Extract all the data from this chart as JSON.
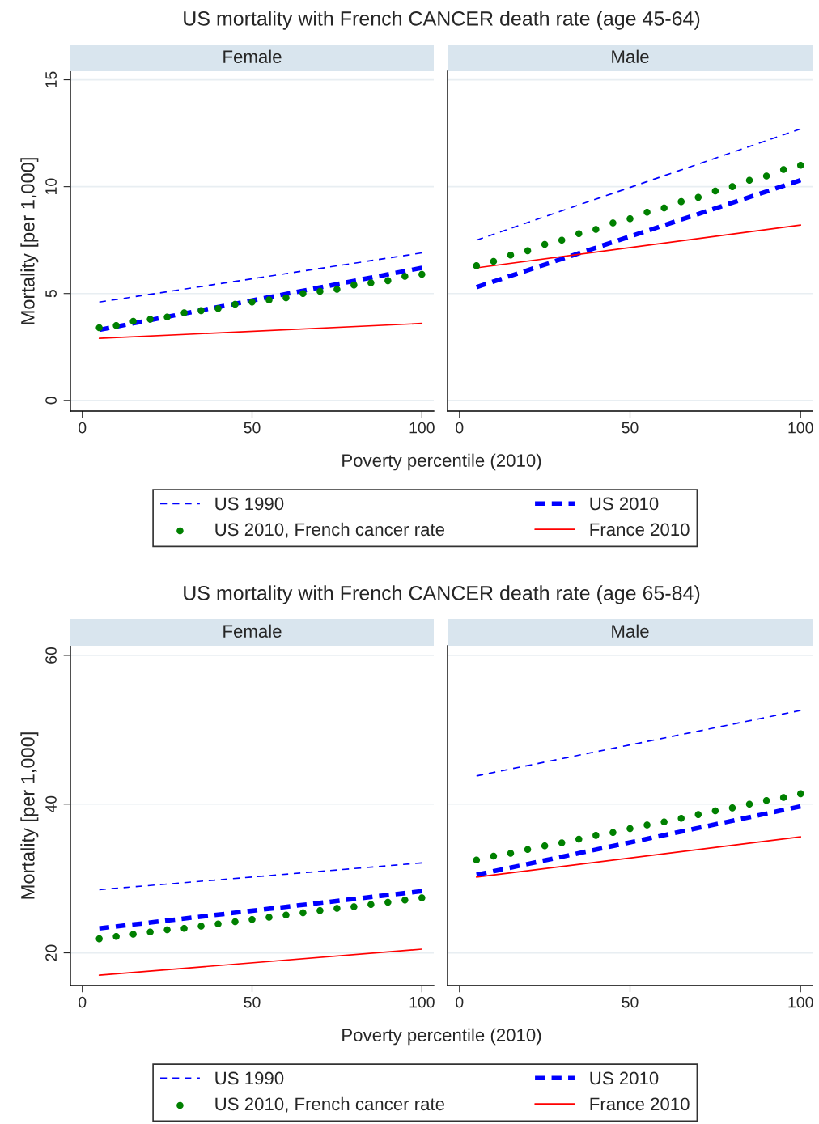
{
  "chart_data": [
    {
      "type": "line",
      "title": "US mortality with French CANCER death rate (age 45-64)",
      "subtitle": "Female",
      "xlabel": "Poverty percentile (2010)",
      "ylabel": "Mortality [per 1,000]",
      "xlim": [
        -3.5,
        103.5
      ],
      "ylim": [
        -0.5,
        15.4
      ],
      "xticks": [
        0,
        50,
        100
      ],
      "yticks": [
        0,
        5,
        10,
        15
      ],
      "grid": "y",
      "legend": "bottom",
      "series": [
        {
          "name": "US 1990",
          "line_style": "dashed",
          "color": "#0000ff",
          "x": [
            5,
            100
          ],
          "values": [
            4.6,
            6.9
          ]
        },
        {
          "name": "US 2010",
          "line_style": "dashed",
          "color": "#0000ff",
          "x": [
            5,
            100
          ],
          "values": [
            3.3,
            6.2
          ]
        },
        {
          "name": "US 2010, French cancer rate",
          "type": "scatter",
          "marker": "circle",
          "color": "#008000",
          "x": [
            5,
            10,
            15,
            20,
            25,
            30,
            35,
            40,
            45,
            50,
            55,
            60,
            65,
            70,
            75,
            80,
            85,
            90,
            95,
            100
          ],
          "values": [
            3.4,
            3.5,
            3.7,
            3.8,
            3.9,
            4.1,
            4.2,
            4.3,
            4.5,
            4.6,
            4.7,
            4.8,
            5.0,
            5.1,
            5.2,
            5.4,
            5.5,
            5.6,
            5.8,
            5.9
          ]
        },
        {
          "name": "France 2010",
          "line_style": "solid",
          "color": "#ff0000",
          "x": [
            5,
            100
          ],
          "values": [
            2.9,
            3.6
          ]
        }
      ]
    },
    {
      "type": "line",
      "subtitle": "Male",
      "xlim": [
        -3.5,
        103.5
      ],
      "ylim": [
        -0.5,
        15.4
      ],
      "xticks": [
        0,
        50,
        100
      ],
      "yticks": [
        0,
        5,
        10,
        15
      ],
      "grid": "y",
      "tick_labels": "x",
      "series": [
        {
          "line_style": "dashed",
          "color": "#0000ff",
          "x": [
            5,
            100
          ],
          "values": [
            7.5,
            12.7
          ]
        },
        {
          "line_style": "dashed",
          "color": "#0000ff",
          "x": [
            5,
            100
          ],
          "values": [
            5.3,
            10.3
          ]
        },
        {
          "type": "scatter",
          "marker": "circle",
          "color": "#008000",
          "x": [
            5,
            10,
            15,
            20,
            25,
            30,
            35,
            40,
            45,
            50,
            55,
            60,
            65,
            70,
            75,
            80,
            85,
            90,
            95,
            100
          ],
          "values": [
            6.3,
            6.5,
            6.8,
            7.0,
            7.3,
            7.5,
            7.8,
            8.0,
            8.3,
            8.5,
            8.8,
            9.0,
            9.3,
            9.5,
            9.8,
            10.0,
            10.3,
            10.5,
            10.8,
            11.0
          ]
        },
        {
          "line_style": "solid",
          "color": "#ff0000",
          "x": [
            5,
            100
          ],
          "values": [
            6.2,
            8.2
          ]
        }
      ]
    },
    {
      "type": "line",
      "title": "US mortality with French CANCER death rate (age 65-84)",
      "subtitle": "Female",
      "xlabel": "Poverty percentile (2010)",
      "ylabel": "Mortality [per 1,000]",
      "xlim": [
        -3.5,
        103.5
      ],
      "ylim": [
        15.6,
        61.3
      ],
      "xticks": [
        0,
        50,
        100
      ],
      "yticks": [
        20,
        40,
        60
      ],
      "grid": "y",
      "legend": "bottom",
      "series": [
        {
          "name": "US 1990",
          "line_style": "dashed",
          "color": "#0000ff",
          "x": [
            5,
            100
          ],
          "values": [
            28.5,
            32.1
          ]
        },
        {
          "name": "US 2010",
          "line_style": "dashed",
          "color": "#0000ff",
          "x": [
            5,
            100
          ],
          "values": [
            23.3,
            28.3
          ]
        },
        {
          "name": "US 2010, French cancer rate",
          "type": "scatter",
          "marker": "circle",
          "color": "#008000",
          "x": [
            5,
            10,
            15,
            20,
            25,
            30,
            35,
            40,
            45,
            50,
            55,
            60,
            65,
            70,
            75,
            80,
            85,
            90,
            95,
            100
          ],
          "values": [
            21.9,
            22.2,
            22.5,
            22.8,
            23.1,
            23.3,
            23.6,
            23.9,
            24.2,
            24.5,
            24.8,
            25.1,
            25.4,
            25.7,
            26.0,
            26.2,
            26.5,
            26.8,
            27.1,
            27.4
          ]
        },
        {
          "name": "France 2010",
          "line_style": "solid",
          "color": "#ff0000",
          "x": [
            5,
            100
          ],
          "values": [
            17.0,
            20.5
          ]
        }
      ]
    },
    {
      "type": "line",
      "subtitle": "Male",
      "xlim": [
        -3.5,
        103.5
      ],
      "ylim": [
        15.6,
        61.3
      ],
      "xticks": [
        0,
        50,
        100
      ],
      "yticks": [
        20,
        40,
        60
      ],
      "grid": "y",
      "tick_labels": "x",
      "series": [
        {
          "line_style": "dashed",
          "color": "#0000ff",
          "x": [
            5,
            100
          ],
          "values": [
            43.8,
            52.6
          ]
        },
        {
          "line_style": "dashed",
          "color": "#0000ff",
          "x": [
            5,
            100
          ],
          "values": [
            30.5,
            39.7
          ]
        },
        {
          "type": "scatter",
          "marker": "circle",
          "color": "#008000",
          "x": [
            5,
            10,
            15,
            20,
            25,
            30,
            35,
            40,
            45,
            50,
            55,
            60,
            65,
            70,
            75,
            80,
            85,
            90,
            95,
            100
          ],
          "values": [
            32.5,
            33.0,
            33.4,
            33.9,
            34.4,
            34.8,
            35.3,
            35.8,
            36.2,
            36.7,
            37.2,
            37.6,
            38.1,
            38.6,
            39.1,
            39.5,
            40.0,
            40.5,
            40.9,
            41.4
          ]
        },
        {
          "line_style": "solid",
          "color": "#ff0000",
          "x": [
            5,
            100
          ],
          "values": [
            30.2,
            35.6
          ]
        }
      ]
    }
  ]
}
